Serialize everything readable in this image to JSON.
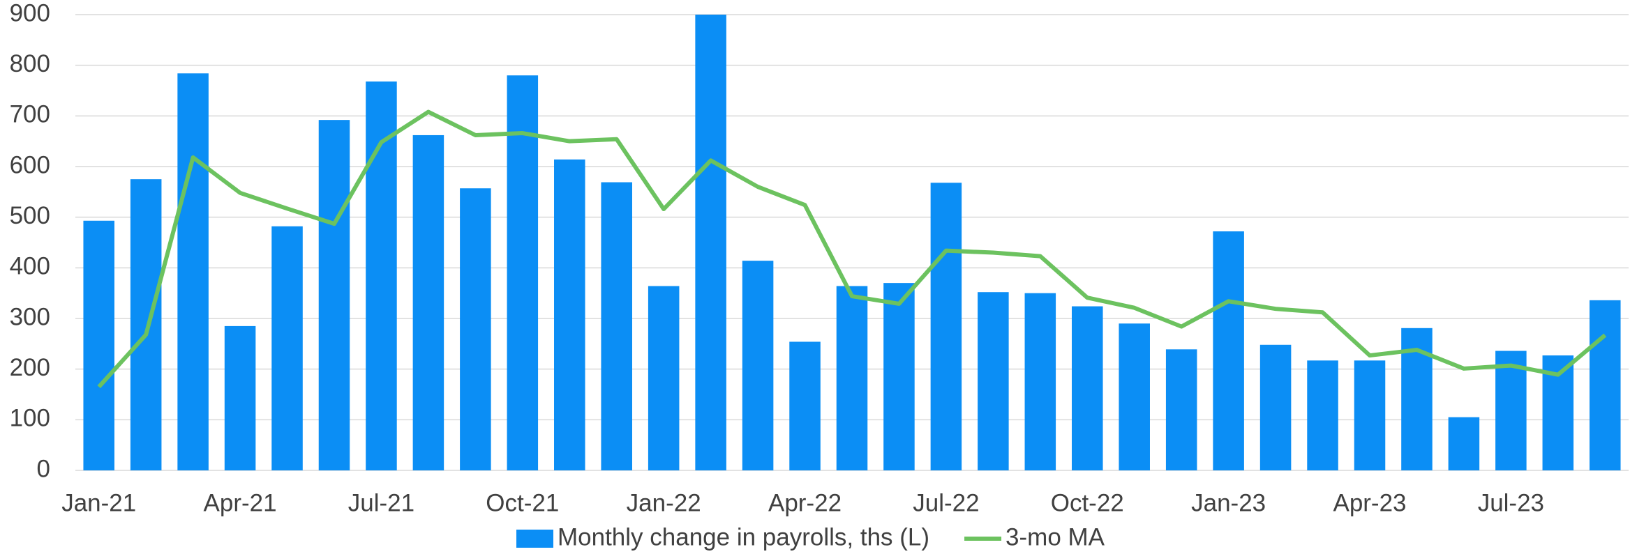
{
  "chart_data": {
    "type": "bar_line",
    "categories": [
      "Jan-21",
      null,
      null,
      "Apr-21",
      null,
      null,
      "Jul-21",
      null,
      null,
      "Oct-21",
      null,
      null,
      "Jan-22",
      null,
      null,
      "Apr-22",
      null,
      null,
      "Jul-22",
      null,
      null,
      "Oct-22",
      null,
      null,
      "Jan-23",
      null,
      null,
      "Apr-23",
      null,
      null,
      "Jul-23",
      null,
      null
    ],
    "series": [
      {
        "name": "Monthly change in payrolls, ths (L)",
        "type": "bar",
        "color": "#0b8ef5",
        "values": [
          493,
          575,
          784,
          285,
          482,
          692,
          768,
          662,
          557,
          780,
          614,
          569,
          364,
          900,
          414,
          254,
          364,
          370,
          568,
          352,
          350,
          324,
          290,
          239,
          472,
          248,
          217,
          217,
          281,
          105,
          236,
          227,
          336
        ]
      },
      {
        "name": "3-mo MA",
        "type": "line",
        "color": "#6cc25f",
        "values": [
          165,
          268,
          618,
          548,
          517,
          487,
          648,
          708,
          662,
          666,
          650,
          654,
          516,
          612,
          560,
          524,
          344,
          329,
          434,
          430,
          423,
          341,
          321,
          284,
          334,
          319,
          312,
          227,
          238,
          201,
          207,
          189,
          267
        ]
      }
    ],
    "ylim": [
      0,
      900
    ],
    "yticks": [
      0,
      100,
      200,
      300,
      400,
      500,
      600,
      700,
      800,
      900
    ],
    "grid": true,
    "legend": "bottom"
  }
}
